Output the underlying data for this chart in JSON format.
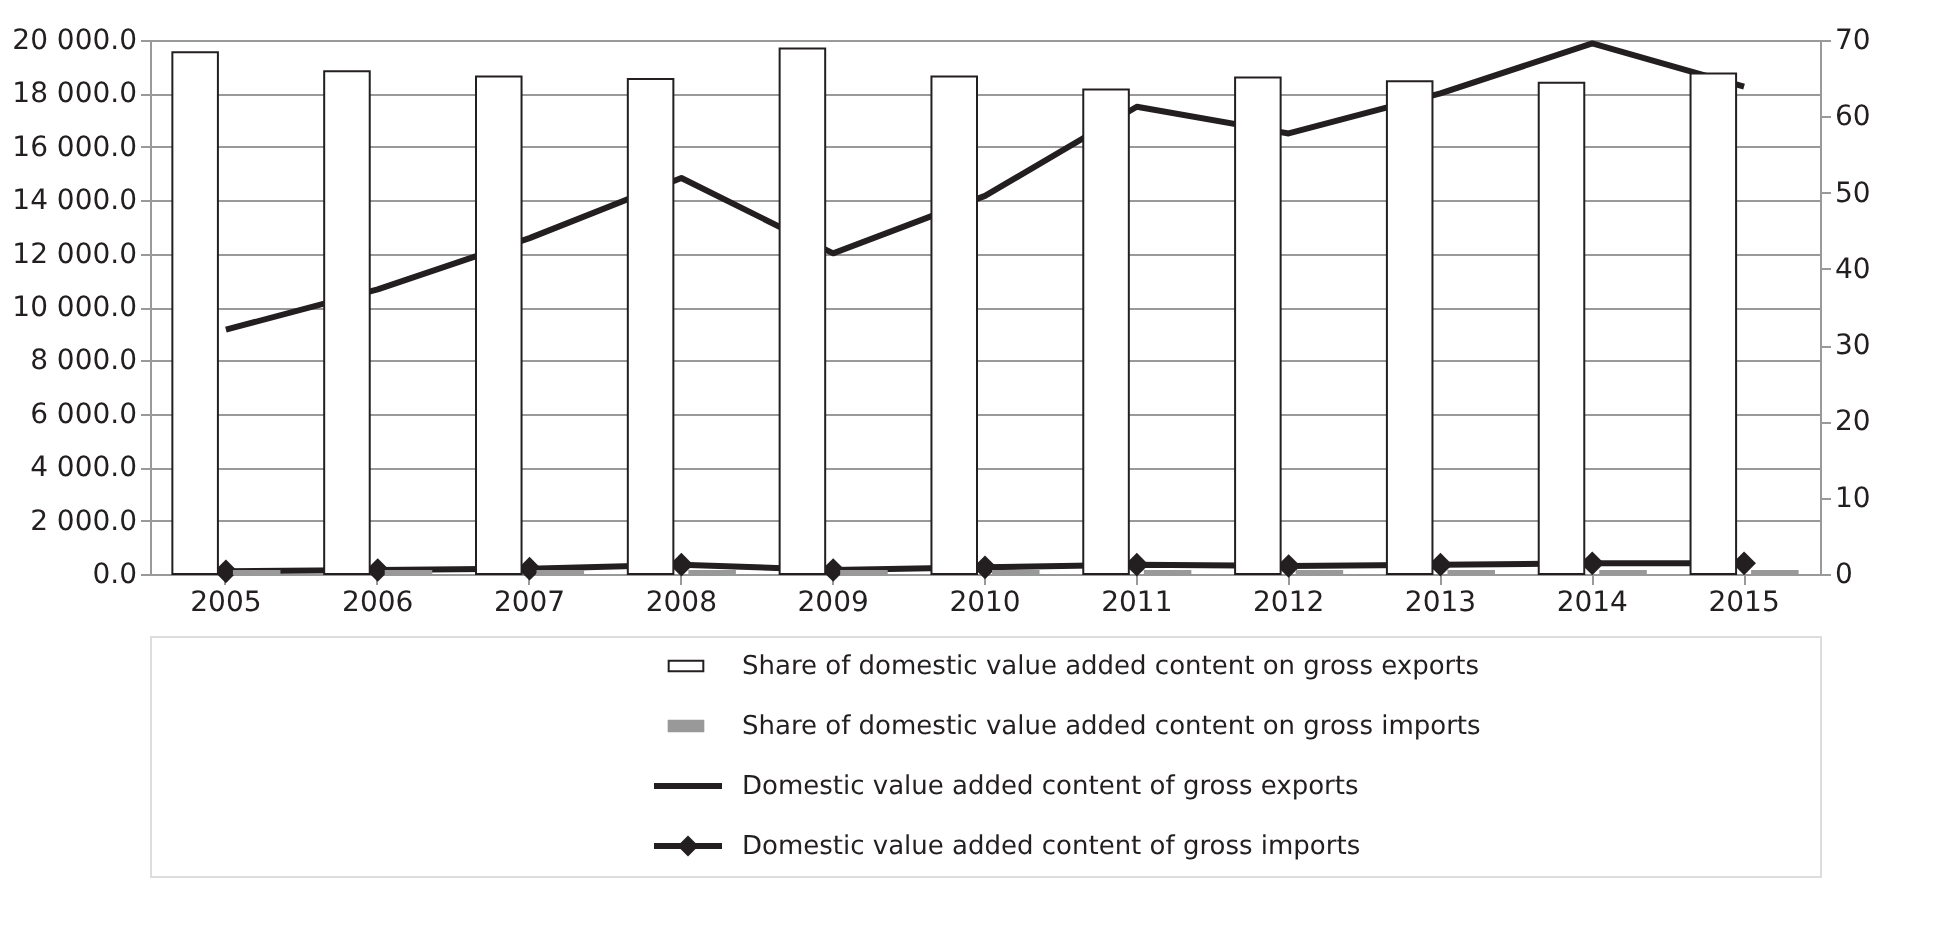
{
  "chart_data": {
    "type": "bar",
    "categories": [
      "2005",
      "2006",
      "2007",
      "2008",
      "2009",
      "2010",
      "2011",
      "2012",
      "2013",
      "2014",
      "2015"
    ],
    "series": [
      {
        "name": "Share of domestic value added content on gross exports",
        "type": "bar",
        "axis": "y2",
        "color": "#ffffff",
        "values": [
          68.4,
          65.9,
          65.2,
          64.9,
          68.9,
          65.2,
          63.5,
          65.1,
          64.6,
          64.4,
          65.6
        ]
      },
      {
        "name": "Share of domestic value added content on gross imports",
        "type": "bar",
        "axis": "y2",
        "color": "#999999",
        "values": [
          0.4,
          0.4,
          0.4,
          0.4,
          0.4,
          0.4,
          0.4,
          0.4,
          0.4,
          0.4,
          0.4
        ]
      },
      {
        "name": "Domestic value added content of gross exports",
        "type": "line",
        "axis": "y",
        "color": "#231f20",
        "marker": "none",
        "values": [
          9150,
          10660,
          12580,
          14830,
          12010,
          14160,
          17500,
          16500,
          18000,
          19870,
          18250
        ]
      },
      {
        "name": "Domestic value added content of gross imports",
        "type": "line",
        "axis": "y",
        "color": "#231f20",
        "marker": "diamond",
        "values": [
          100,
          150,
          200,
          350,
          150,
          250,
          350,
          300,
          350,
          400,
          400
        ]
      }
    ],
    "ylim": [
      0,
      20000
    ],
    "yticks": [
      {
        "value": 0,
        "label": "0.0"
      },
      {
        "value": 2000,
        "label": "2 000.0"
      },
      {
        "value": 4000,
        "label": "4 000.0"
      },
      {
        "value": 6000,
        "label": "6 000.0"
      },
      {
        "value": 8000,
        "label": "8 000.0"
      },
      {
        "value": 10000,
        "label": "10 000.0"
      },
      {
        "value": 12000,
        "label": "12 000.0"
      },
      {
        "value": 14000,
        "label": "14 000.0"
      },
      {
        "value": 16000,
        "label": "16 000.0"
      },
      {
        "value": 18000,
        "label": "18 000.0"
      },
      {
        "value": 20000,
        "label": "20 000.0"
      }
    ],
    "y2lim": [
      0,
      70
    ],
    "y2ticks": [
      0,
      10,
      20,
      30,
      40,
      50,
      60,
      70
    ],
    "grid": "y",
    "legend": "bottom"
  }
}
